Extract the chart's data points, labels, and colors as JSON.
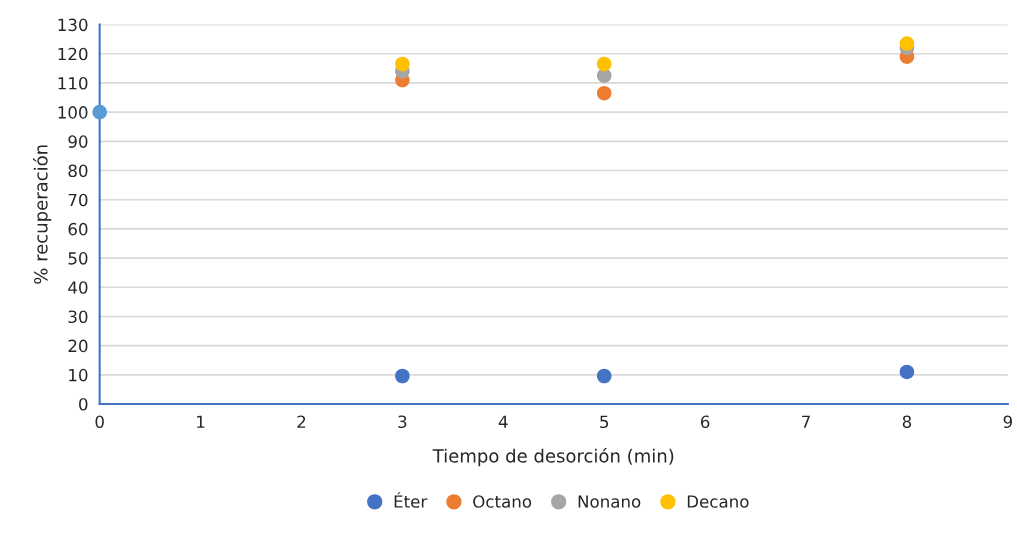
{
  "chart_data": {
    "type": "scatter",
    "xlabel": "Tiempo de desorción (min)",
    "ylabel": "% recuperación",
    "series": [
      {
        "color": "#5b9bd5",
        "x": [
          0
        ],
        "values": [
          100
        ]
      },
      {
        "name": "Éter",
        "color": "#4472c4",
        "x": [
          3,
          5,
          8
        ],
        "values": [
          9.6,
          9.6,
          11
        ]
      },
      {
        "name": "Octano",
        "color": "#ed7d31",
        "x": [
          3,
          5,
          8
        ],
        "values": [
          111,
          106.5,
          119
        ]
      },
      {
        "name": "Nonano",
        "color": "#a5a5a5",
        "x": [
          3,
          5,
          8
        ],
        "values": [
          114,
          112.5,
          122
        ]
      },
      {
        "name": "Decano",
        "color": "#ffc000",
        "x": [
          3,
          5,
          8
        ],
        "values": [
          116.5,
          116.5,
          123.5
        ]
      }
    ],
    "xlim": [
      0,
      9
    ],
    "xticks": [
      0,
      1,
      2,
      3,
      4,
      5,
      6,
      7,
      8,
      9
    ],
    "ylim": [
      0,
      130
    ],
    "yticks": [
      0,
      10,
      20,
      30,
      40,
      50,
      60,
      70,
      80,
      90,
      100,
      110,
      120,
      130
    ],
    "grid": "y",
    "legend": "bottom",
    "marker": "circle"
  }
}
